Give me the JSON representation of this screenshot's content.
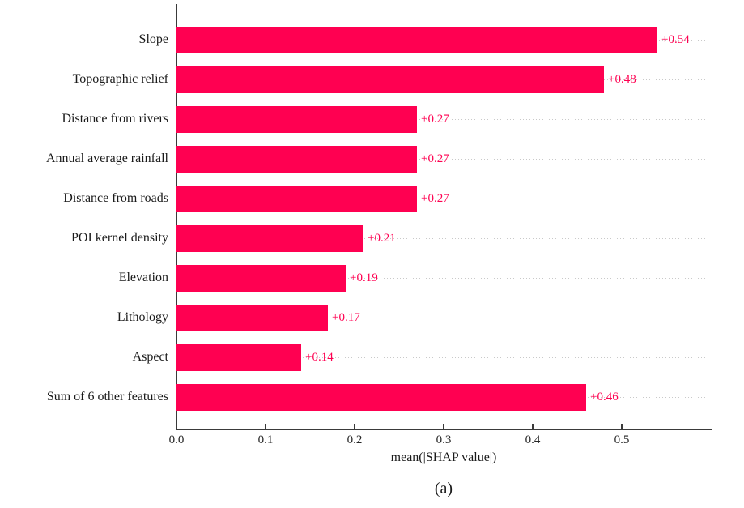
{
  "figure": {
    "caption": "(a)",
    "background": "#ffffff"
  },
  "chart_data": {
    "type": "bar",
    "orientation": "horizontal",
    "title": "",
    "xlabel": "mean(|SHAP value|)",
    "ylabel": "",
    "categories": [
      "Slope",
      "Topographic relief",
      "Distance from rivers",
      "Annual average rainfall",
      "Distance from roads",
      "POI kernel density",
      "Elevation",
      "Lithology",
      "Aspect",
      "Sum of 6 other features"
    ],
    "values": [
      0.54,
      0.48,
      0.27,
      0.27,
      0.27,
      0.21,
      0.19,
      0.17,
      0.14,
      0.46
    ],
    "value_labels": [
      "+0.54",
      "+0.48",
      "+0.27",
      "+0.27",
      "+0.27",
      "+0.21",
      "+0.19",
      "+0.17",
      "+0.14",
      "+0.46"
    ],
    "xlim": [
      0,
      0.6
    ],
    "xticks": [
      "0.0",
      "0.1",
      "0.2",
      "0.3",
      "0.4",
      "0.5"
    ],
    "xtick_values": [
      0.0,
      0.1,
      0.2,
      0.3,
      0.4,
      0.5
    ],
    "grid": "horizontal-dotted",
    "legend": null,
    "colors": {
      "bar": "#ff0051",
      "value_label": "#ff0051",
      "grid_line": "#c9c9c9",
      "axis": "#3a3a3a",
      "tick_label": "#262626",
      "category_label": "#1a1a1a"
    }
  }
}
